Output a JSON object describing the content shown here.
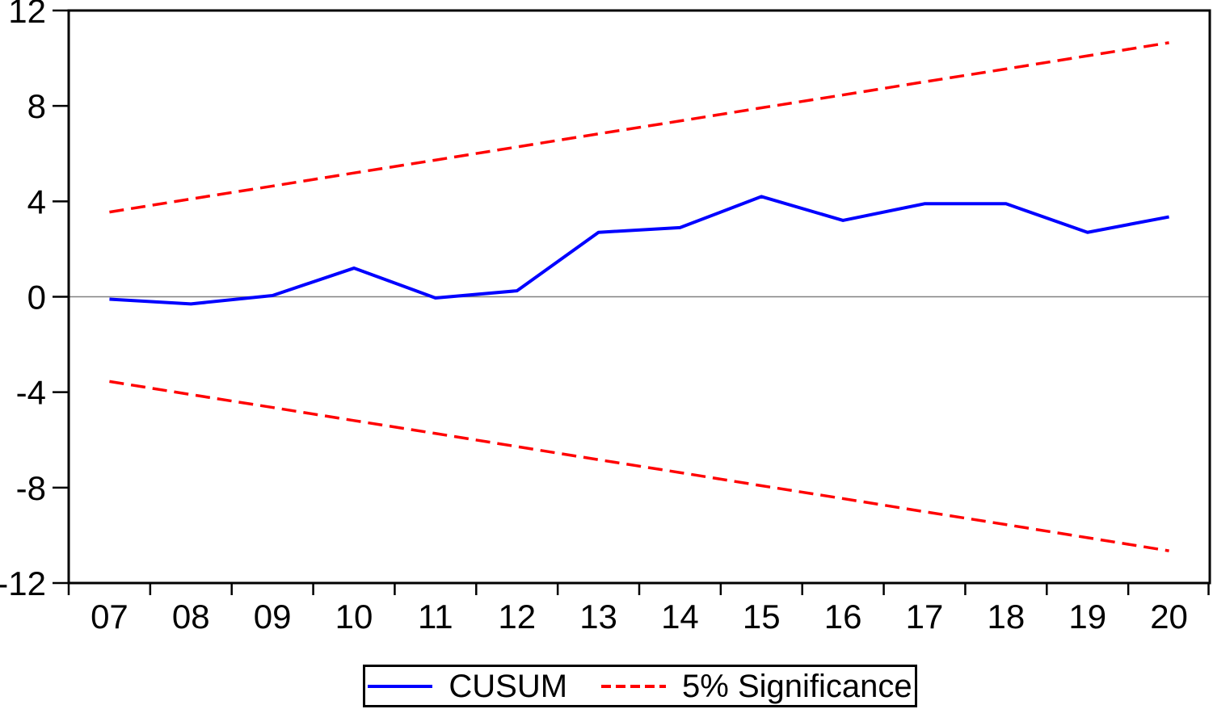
{
  "chart_data": {
    "type": "line",
    "title": "",
    "xlabel": "",
    "ylabel": "",
    "x_categories": [
      "07",
      "08",
      "09",
      "10",
      "11",
      "12",
      "13",
      "14",
      "15",
      "16",
      "17",
      "18",
      "19",
      "20"
    ],
    "series": [
      {
        "id": "cusum",
        "name": "CUSUM",
        "color": "#0000ff",
        "line_style": "solid",
        "values": [
          -0.1,
          -0.3,
          0.05,
          1.2,
          -0.05,
          0.25,
          2.7,
          2.9,
          4.2,
          3.2,
          3.9,
          3.9,
          2.7,
          3.35
        ]
      },
      {
        "id": "significance-upper",
        "name": "5% Significance (upper bound)",
        "color": "#ff0000",
        "line_style": "dashed",
        "values": [
          3.55,
          4.1,
          4.64,
          5.19,
          5.73,
          6.28,
          6.83,
          7.37,
          7.92,
          8.46,
          9.01,
          9.55,
          10.1,
          10.65
        ]
      },
      {
        "id": "significance-lower",
        "name": "5% Significance (lower bound)",
        "color": "#ff0000",
        "line_style": "dashed",
        "values": [
          -3.55,
          -4.1,
          -4.64,
          -5.19,
          -5.73,
          -6.28,
          -6.83,
          -7.37,
          -7.92,
          -8.46,
          -9.01,
          -9.55,
          -10.1,
          -10.65
        ]
      }
    ],
    "ylim": [
      -12,
      12
    ],
    "y_ticks": [
      {
        "label": "12",
        "value": 12
      },
      {
        "label": "8",
        "value": 8
      },
      {
        "label": "4",
        "value": 4
      },
      {
        "label": "0",
        "value": 0
      },
      {
        "label": "-4",
        "value": -4
      },
      {
        "label": "-8",
        "value": -8
      },
      {
        "label": "-12",
        "value": -12
      }
    ],
    "grid": "off",
    "zero_line": true,
    "zero_line_color": "#808080",
    "plot_border_color": "#000000",
    "legend": {
      "position": "bottom-center",
      "items": [
        {
          "label": "CUSUM",
          "color": "#0000ff",
          "style": "solid"
        },
        {
          "label": "5% Significance",
          "color": "#ff0000",
          "style": "dashed"
        }
      ]
    }
  }
}
